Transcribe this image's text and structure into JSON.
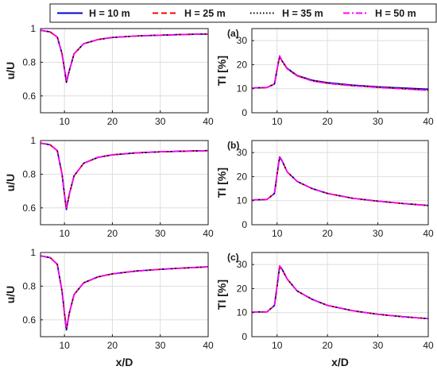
{
  "legend": {
    "items": [
      {
        "label": "H = 10 m",
        "color": "#0000cc",
        "style": "solid"
      },
      {
        "label": "H = 25 m",
        "color": "#ff0000",
        "style": "dashed"
      },
      {
        "label": "H = 35 m",
        "color": "#000000",
        "style": "dotted"
      },
      {
        "label": "H = 50 m",
        "color": "#ff00ff",
        "style": "dashdot"
      }
    ]
  },
  "chart_data": [
    {
      "type": "line",
      "panel": "velocity-top",
      "xlabel": "",
      "ylabel": "u/U",
      "xlim": [
        5,
        40
      ],
      "ylim": [
        0.5,
        1.0
      ],
      "xticks": [
        10,
        20,
        30,
        40
      ],
      "yticks": [
        0.6,
        0.8,
        1
      ],
      "ytick_labels": [
        "0.6",
        "0.8",
        "1"
      ],
      "grid": true,
      "series": [
        {
          "name": "H = 10 m",
          "x": [
            5,
            7,
            8.5,
            9.5,
            10,
            10.4,
            11,
            12,
            14,
            17,
            20,
            25,
            30,
            35,
            40
          ],
          "y": [
            0.99,
            0.98,
            0.95,
            0.85,
            0.76,
            0.68,
            0.75,
            0.85,
            0.91,
            0.935,
            0.947,
            0.956,
            0.961,
            0.965,
            0.968
          ]
        },
        {
          "name": "H = 25 m",
          "x": [
            5,
            7,
            8.5,
            9.5,
            10,
            10.4,
            11,
            12,
            14,
            17,
            20,
            25,
            30,
            35,
            40
          ],
          "y": [
            0.99,
            0.98,
            0.95,
            0.85,
            0.76,
            0.685,
            0.75,
            0.85,
            0.91,
            0.935,
            0.947,
            0.956,
            0.961,
            0.965,
            0.968
          ]
        },
        {
          "name": "H = 35 m",
          "x": [
            5,
            7,
            8.5,
            9.5,
            10,
            10.4,
            11,
            12,
            14,
            17,
            20,
            25,
            30,
            35,
            40
          ],
          "y": [
            0.99,
            0.98,
            0.95,
            0.85,
            0.76,
            0.685,
            0.75,
            0.85,
            0.91,
            0.935,
            0.947,
            0.956,
            0.961,
            0.965,
            0.968
          ]
        },
        {
          "name": "H = 50 m",
          "x": [
            5,
            7,
            8.5,
            9.5,
            10,
            10.4,
            11,
            12,
            14,
            17,
            20,
            25,
            30,
            35,
            40
          ],
          "y": [
            0.99,
            0.98,
            0.95,
            0.85,
            0.76,
            0.69,
            0.75,
            0.85,
            0.91,
            0.935,
            0.947,
            0.956,
            0.961,
            0.965,
            0.968
          ]
        }
      ]
    },
    {
      "type": "line",
      "panel": "ti-top",
      "tag": "(a)",
      "xlabel": "",
      "ylabel": "TI [%]",
      "xlim": [
        5,
        40
      ],
      "ylim": [
        0,
        35
      ],
      "xticks": [
        10,
        20,
        30,
        40
      ],
      "yticks": [
        0,
        10,
        20,
        30
      ],
      "ytick_labels": [
        "0",
        "10",
        "20",
        "30"
      ],
      "grid": true,
      "series": [
        {
          "name": "H = 10 m",
          "x": [
            5,
            8,
            9.5,
            10,
            10.5,
            11,
            12,
            14,
            17,
            20,
            25,
            30,
            35,
            40
          ],
          "y": [
            10.3,
            10.5,
            12,
            18,
            23.3,
            21.5,
            18.5,
            15.5,
            13.5,
            12.5,
            11.5,
            10.8,
            10.3,
            9.8
          ]
        },
        {
          "name": "H = 25 m",
          "x": [
            5,
            8,
            9.5,
            10,
            10.5,
            11,
            12,
            14,
            17,
            20,
            25,
            30,
            35,
            40
          ],
          "y": [
            10.3,
            10.5,
            12,
            18,
            23.5,
            21.5,
            18.3,
            15.4,
            13.3,
            12.3,
            11.3,
            10.6,
            10,
            9.4
          ]
        },
        {
          "name": "H = 35 m",
          "x": [
            5,
            8,
            9.5,
            10,
            10.5,
            11,
            12,
            14,
            17,
            20,
            25,
            30,
            35,
            40
          ],
          "y": [
            10.3,
            10.5,
            12,
            18,
            23.5,
            21.5,
            18.3,
            15.4,
            13.3,
            12.3,
            11.3,
            10.6,
            10,
            9.4
          ]
        },
        {
          "name": "H = 50 m",
          "x": [
            5,
            8,
            9.5,
            10,
            10.5,
            11,
            12,
            14,
            17,
            20,
            25,
            30,
            35,
            40
          ],
          "y": [
            10.3,
            10.5,
            12,
            18,
            23.7,
            21.6,
            18.3,
            15.3,
            13.2,
            12.2,
            11.2,
            10.5,
            9.9,
            9.3
          ]
        }
      ]
    },
    {
      "type": "line",
      "panel": "velocity-middle",
      "xlabel": "",
      "ylabel": "u/U",
      "xlim": [
        5,
        40
      ],
      "ylim": [
        0.5,
        1.0
      ],
      "xticks": [
        10,
        20,
        30,
        40
      ],
      "yticks": [
        0.6,
        0.8,
        1
      ],
      "ytick_labels": [
        "0.6",
        "0.8",
        "1"
      ],
      "grid": true,
      "series": [
        {
          "name": "H = 10 m",
          "x": [
            5,
            7,
            8.5,
            9.5,
            10,
            10.4,
            11,
            12,
            14,
            17,
            20,
            25,
            30,
            35,
            40
          ],
          "y": [
            0.985,
            0.975,
            0.94,
            0.8,
            0.68,
            0.59,
            0.68,
            0.79,
            0.865,
            0.9,
            0.915,
            0.927,
            0.933,
            0.937,
            0.94
          ]
        },
        {
          "name": "H = 25 m",
          "x": [
            5,
            7,
            8.5,
            9.5,
            10,
            10.4,
            11,
            12,
            14,
            17,
            20,
            25,
            30,
            35,
            40
          ],
          "y": [
            0.985,
            0.975,
            0.94,
            0.8,
            0.68,
            0.595,
            0.68,
            0.79,
            0.865,
            0.9,
            0.915,
            0.927,
            0.933,
            0.937,
            0.94
          ]
        },
        {
          "name": "H = 35 m",
          "x": [
            5,
            7,
            8.5,
            9.5,
            10,
            10.4,
            11,
            12,
            14,
            17,
            20,
            25,
            30,
            35,
            40
          ],
          "y": [
            0.985,
            0.975,
            0.94,
            0.8,
            0.68,
            0.595,
            0.68,
            0.79,
            0.865,
            0.9,
            0.915,
            0.927,
            0.933,
            0.937,
            0.94
          ]
        },
        {
          "name": "H = 50 m",
          "x": [
            5,
            7,
            8.5,
            9.5,
            10,
            10.4,
            11,
            12,
            14,
            17,
            20,
            25,
            30,
            35,
            40
          ],
          "y": [
            0.985,
            0.975,
            0.94,
            0.8,
            0.68,
            0.6,
            0.68,
            0.79,
            0.865,
            0.9,
            0.915,
            0.927,
            0.933,
            0.937,
            0.94
          ]
        }
      ]
    },
    {
      "type": "line",
      "panel": "ti-middle",
      "tag": "(b)",
      "xlabel": "",
      "ylabel": "TI [%]",
      "xlim": [
        5,
        40
      ],
      "ylim": [
        0,
        35
      ],
      "xticks": [
        10,
        20,
        30,
        40
      ],
      "yticks": [
        0,
        10,
        20,
        30
      ],
      "ytick_labels": [
        "0",
        "10",
        "20",
        "30"
      ],
      "grid": true,
      "series": [
        {
          "name": "H = 10 m",
          "x": [
            5,
            8,
            9.5,
            10,
            10.5,
            11,
            12,
            14,
            17,
            20,
            25,
            30,
            35,
            40
          ],
          "y": [
            10.3,
            10.5,
            13,
            21,
            28,
            26.5,
            22,
            18,
            15,
            13,
            11,
            9.8,
            8.8,
            8
          ]
        },
        {
          "name": "H = 25 m",
          "x": [
            5,
            8,
            9.5,
            10,
            10.5,
            11,
            12,
            14,
            17,
            20,
            25,
            30,
            35,
            40
          ],
          "y": [
            10.3,
            10.5,
            13,
            21,
            28.2,
            26.5,
            22,
            18,
            15,
            13,
            11,
            9.8,
            8.8,
            8
          ]
        },
        {
          "name": "H = 35 m",
          "x": [
            5,
            8,
            9.5,
            10,
            10.5,
            11,
            12,
            14,
            17,
            20,
            25,
            30,
            35,
            40
          ],
          "y": [
            10.3,
            10.5,
            13,
            21,
            28.2,
            26.5,
            22,
            18,
            15,
            13,
            11,
            9.8,
            8.8,
            8
          ]
        },
        {
          "name": "H = 50 m",
          "x": [
            5,
            8,
            9.5,
            10,
            10.5,
            11,
            12,
            14,
            17,
            20,
            25,
            30,
            35,
            40
          ],
          "y": [
            10.3,
            10.5,
            13,
            21,
            28.5,
            26.6,
            22,
            18,
            15,
            13,
            11,
            9.8,
            8.8,
            8
          ]
        }
      ]
    },
    {
      "type": "line",
      "panel": "velocity-bottom",
      "xlabel": "x/D",
      "ylabel": "u/U",
      "xlim": [
        5,
        40
      ],
      "ylim": [
        0.5,
        1.0
      ],
      "xticks": [
        10,
        20,
        30,
        40
      ],
      "yticks": [
        0.6,
        0.8,
        1
      ],
      "ytick_labels": [
        "0.6",
        "0.8",
        "1"
      ],
      "grid": true,
      "series": [
        {
          "name": "H = 10 m",
          "x": [
            5,
            7,
            8.5,
            9.5,
            10,
            10.4,
            11,
            12,
            14,
            17,
            20,
            25,
            30,
            35,
            40
          ],
          "y": [
            0.98,
            0.97,
            0.93,
            0.77,
            0.64,
            0.54,
            0.64,
            0.75,
            0.82,
            0.855,
            0.873,
            0.89,
            0.9,
            0.908,
            0.915
          ]
        },
        {
          "name": "H = 25 m",
          "x": [
            5,
            7,
            8.5,
            9.5,
            10,
            10.4,
            11,
            12,
            14,
            17,
            20,
            25,
            30,
            35,
            40
          ],
          "y": [
            0.98,
            0.97,
            0.93,
            0.77,
            0.64,
            0.545,
            0.64,
            0.75,
            0.82,
            0.855,
            0.873,
            0.89,
            0.9,
            0.908,
            0.915
          ]
        },
        {
          "name": "H = 35 m",
          "x": [
            5,
            7,
            8.5,
            9.5,
            10,
            10.4,
            11,
            12,
            14,
            17,
            20,
            25,
            30,
            35,
            40
          ],
          "y": [
            0.98,
            0.97,
            0.93,
            0.77,
            0.64,
            0.545,
            0.64,
            0.75,
            0.82,
            0.855,
            0.873,
            0.89,
            0.9,
            0.908,
            0.915
          ]
        },
        {
          "name": "H = 50 m",
          "x": [
            5,
            7,
            8.5,
            9.5,
            10,
            10.4,
            11,
            12,
            14,
            17,
            20,
            25,
            30,
            35,
            40
          ],
          "y": [
            0.98,
            0.97,
            0.93,
            0.77,
            0.64,
            0.55,
            0.64,
            0.75,
            0.82,
            0.855,
            0.873,
            0.89,
            0.9,
            0.908,
            0.915
          ]
        }
      ]
    },
    {
      "type": "line",
      "panel": "ti-bottom",
      "tag": "(c)",
      "xlabel": "x/D",
      "ylabel": "TI [%]",
      "xlim": [
        5,
        40
      ],
      "ylim": [
        0,
        35
      ],
      "xticks": [
        10,
        20,
        30,
        40
      ],
      "yticks": [
        0,
        10,
        20,
        30
      ],
      "ytick_labels": [
        "0",
        "10",
        "20",
        "30"
      ],
      "grid": true,
      "series": [
        {
          "name": "H = 10 m",
          "x": [
            5,
            8,
            9.5,
            10,
            10.5,
            11,
            12,
            14,
            17,
            20,
            25,
            30,
            35,
            40
          ],
          "y": [
            10.3,
            10.3,
            13,
            21,
            29,
            28,
            24,
            19,
            15.5,
            13,
            10.8,
            9.3,
            8.3,
            7.5
          ]
        },
        {
          "name": "H = 25 m",
          "x": [
            5,
            8,
            9.5,
            10,
            10.5,
            11,
            12,
            14,
            17,
            20,
            25,
            30,
            35,
            40
          ],
          "y": [
            10.3,
            10.3,
            13,
            21,
            29.2,
            28,
            24,
            19,
            15.5,
            13,
            10.8,
            9.3,
            8.3,
            7.5
          ]
        },
        {
          "name": "H = 35 m",
          "x": [
            5,
            8,
            9.5,
            10,
            10.5,
            11,
            12,
            14,
            17,
            20,
            25,
            30,
            35,
            40
          ],
          "y": [
            10.3,
            10.3,
            13,
            21,
            29.2,
            28,
            24,
            19,
            15.5,
            13,
            10.8,
            9.3,
            8.3,
            7.5
          ]
        },
        {
          "name": "H = 50 m",
          "x": [
            5,
            8,
            9.5,
            10,
            10.5,
            11,
            12,
            14,
            17,
            20,
            25,
            30,
            35,
            40
          ],
          "y": [
            10.3,
            10.3,
            13,
            21,
            29.5,
            28.2,
            24,
            19,
            15.5,
            13,
            10.8,
            9.3,
            8.3,
            7.5
          ]
        }
      ]
    }
  ]
}
